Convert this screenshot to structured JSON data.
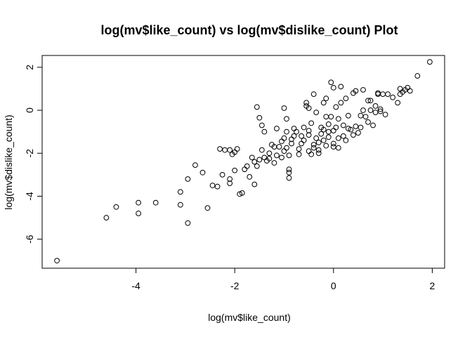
{
  "chart_data": {
    "type": "scatter",
    "title": "log(mv$like_count) vs log(mv$dislike_count) Plot",
    "xlabel": "log(mv$like_count)",
    "ylabel": "log(mv$dislike_count)",
    "xlim": [
      -5.9,
      2.25
    ],
    "ylim": [
      -7.35,
      2.55
    ],
    "xticks": [
      -4,
      -2,
      0,
      2
    ],
    "yticks": [
      -6,
      -4,
      -2,
      0,
      2
    ],
    "xtick_labels": [
      "-4",
      "-2",
      "0",
      "2"
    ],
    "ytick_labels": [
      "-6",
      "-4",
      "-2",
      "0",
      "2"
    ],
    "grid": false,
    "marker": "open-circle",
    "points": [
      [
        -5.6,
        -7.0
      ],
      [
        -4.6,
        -5.0
      ],
      [
        -4.4,
        -4.5
      ],
      [
        -3.95,
        -4.3
      ],
      [
        -3.95,
        -4.8
      ],
      [
        -3.6,
        -4.3
      ],
      [
        -3.1,
        -3.8
      ],
      [
        -3.1,
        -4.4
      ],
      [
        -2.95,
        -5.25
      ],
      [
        -2.95,
        -3.2
      ],
      [
        -2.8,
        -2.55
      ],
      [
        -2.65,
        -2.9
      ],
      [
        -2.55,
        -4.55
      ],
      [
        -2.45,
        -3.5
      ],
      [
        -2.35,
        -3.55
      ],
      [
        -2.3,
        -1.8
      ],
      [
        -2.25,
        -3.0
      ],
      [
        -2.2,
        -1.85
      ],
      [
        -2.1,
        -3.2
      ],
      [
        -2.1,
        -3.4
      ],
      [
        -2.1,
        -1.85
      ],
      [
        -2.05,
        -2.05
      ],
      [
        -2.0,
        -2.8
      ],
      [
        -2.0,
        -1.95
      ],
      [
        -1.95,
        -1.8
      ],
      [
        -1.9,
        -3.9
      ],
      [
        -1.85,
        -3.85
      ],
      [
        -1.8,
        -2.75
      ],
      [
        -1.75,
        -2.6
      ],
      [
        -1.7,
        -3.1
      ],
      [
        -1.65,
        -2.2
      ],
      [
        -1.6,
        -3.45
      ],
      [
        -1.6,
        -2.4
      ],
      [
        -1.55,
        -2.6
      ],
      [
        -1.55,
        0.15
      ],
      [
        -1.5,
        -0.35
      ],
      [
        -1.5,
        -2.3
      ],
      [
        -1.45,
        -1.85
      ],
      [
        -1.45,
        -0.7
      ],
      [
        -1.4,
        -1.0
      ],
      [
        -1.4,
        -2.2
      ],
      [
        -1.35,
        -2.35
      ],
      [
        -1.3,
        -2.0
      ],
      [
        -1.3,
        -2.25
      ],
      [
        -1.25,
        -1.6
      ],
      [
        -1.2,
        -1.7
      ],
      [
        -1.2,
        -2.45
      ],
      [
        -1.15,
        -2.1
      ],
      [
        -1.15,
        -0.85
      ],
      [
        -1.1,
        -1.7
      ],
      [
        -1.05,
        -2.2
      ],
      [
        -1.05,
        -1.45
      ],
      [
        -1.0,
        -1.3
      ],
      [
        -1.0,
        0.1
      ],
      [
        -1.0,
        -1.9
      ],
      [
        -0.95,
        -1.0
      ],
      [
        -0.95,
        -0.4
      ],
      [
        -0.95,
        -1.75
      ],
      [
        -0.9,
        -2.1
      ],
      [
        -0.9,
        -3.15
      ],
      [
        -0.9,
        -2.9
      ],
      [
        -0.9,
        -2.75
      ],
      [
        -0.85,
        -1.35
      ],
      [
        -0.85,
        -1.55
      ],
      [
        -0.8,
        -0.85
      ],
      [
        -0.8,
        -1.2
      ],
      [
        -0.75,
        -1.0
      ],
      [
        -0.7,
        -1.8
      ],
      [
        -0.7,
        -2.05
      ],
      [
        -0.65,
        -1.55
      ],
      [
        -0.65,
        -1.2
      ],
      [
        -0.6,
        -0.8
      ],
      [
        -0.6,
        -1.4
      ],
      [
        -0.55,
        0.2
      ],
      [
        -0.55,
        0.35
      ],
      [
        -0.5,
        -1.9
      ],
      [
        -0.5,
        -1.15
      ],
      [
        -0.5,
        -0.95
      ],
      [
        -0.5,
        0.1
      ],
      [
        -0.45,
        -0.6
      ],
      [
        -0.45,
        -2.05
      ],
      [
        -0.4,
        -1.6
      ],
      [
        -0.4,
        -1.75
      ],
      [
        -0.4,
        0.75
      ],
      [
        -0.35,
        -0.1
      ],
      [
        -0.35,
        -1.3
      ],
      [
        -0.3,
        -1.5
      ],
      [
        -0.3,
        -2.0
      ],
      [
        -0.3,
        -1.85
      ],
      [
        -0.25,
        -0.8
      ],
      [
        -0.25,
        -1.1
      ],
      [
        -0.2,
        0.35
      ],
      [
        -0.2,
        -0.9
      ],
      [
        -0.2,
        -1.4
      ],
      [
        -0.15,
        -0.3
      ],
      [
        -0.15,
        -1.65
      ],
      [
        -0.15,
        0.55
      ],
      [
        -0.1,
        -0.65
      ],
      [
        -0.1,
        -1.0
      ],
      [
        -0.1,
        -1.25
      ],
      [
        -0.05,
        1.3
      ],
      [
        -0.05,
        -0.3
      ],
      [
        0.0,
        1.05
      ],
      [
        0.0,
        -1.7
      ],
      [
        0.0,
        -0.95
      ],
      [
        0.0,
        -1.55
      ],
      [
        0.05,
        0.15
      ],
      [
        0.05,
        -0.8
      ],
      [
        0.1,
        -1.3
      ],
      [
        0.1,
        -0.4
      ],
      [
        0.1,
        -1.75
      ],
      [
        0.15,
        0.35
      ],
      [
        0.15,
        1.1
      ],
      [
        0.2,
        -1.2
      ],
      [
        0.2,
        -0.7
      ],
      [
        0.25,
        -1.4
      ],
      [
        0.25,
        0.55
      ],
      [
        0.3,
        -0.25
      ],
      [
        0.3,
        -0.85
      ],
      [
        0.35,
        -0.9
      ],
      [
        0.4,
        0.8
      ],
      [
        0.4,
        -1.15
      ],
      [
        0.45,
        0.9
      ],
      [
        0.45,
        -0.75
      ],
      [
        0.5,
        -1.05
      ],
      [
        0.55,
        -0.25
      ],
      [
        0.55,
        -0.8
      ],
      [
        0.6,
        0.95
      ],
      [
        0.6,
        0.0
      ],
      [
        0.65,
        -0.3
      ],
      [
        0.7,
        0.45
      ],
      [
        0.7,
        -0.55
      ],
      [
        0.75,
        0.0
      ],
      [
        0.75,
        0.45
      ],
      [
        0.8,
        -0.7
      ],
      [
        0.85,
        -0.1
      ],
      [
        0.85,
        0.2
      ],
      [
        0.9,
        0.8
      ],
      [
        0.9,
        0.75
      ],
      [
        0.95,
        -0.05
      ],
      [
        0.95,
        0.05
      ],
      [
        1.0,
        0.75
      ],
      [
        1.05,
        -0.2
      ],
      [
        1.1,
        0.75
      ],
      [
        1.2,
        0.6
      ],
      [
        1.3,
        0.35
      ],
      [
        1.35,
        0.75
      ],
      [
        1.35,
        1.0
      ],
      [
        1.4,
        0.85
      ],
      [
        1.45,
        0.95
      ],
      [
        1.5,
        1.05
      ],
      [
        1.55,
        0.9
      ],
      [
        1.7,
        1.6
      ],
      [
        1.95,
        2.25
      ]
    ]
  }
}
